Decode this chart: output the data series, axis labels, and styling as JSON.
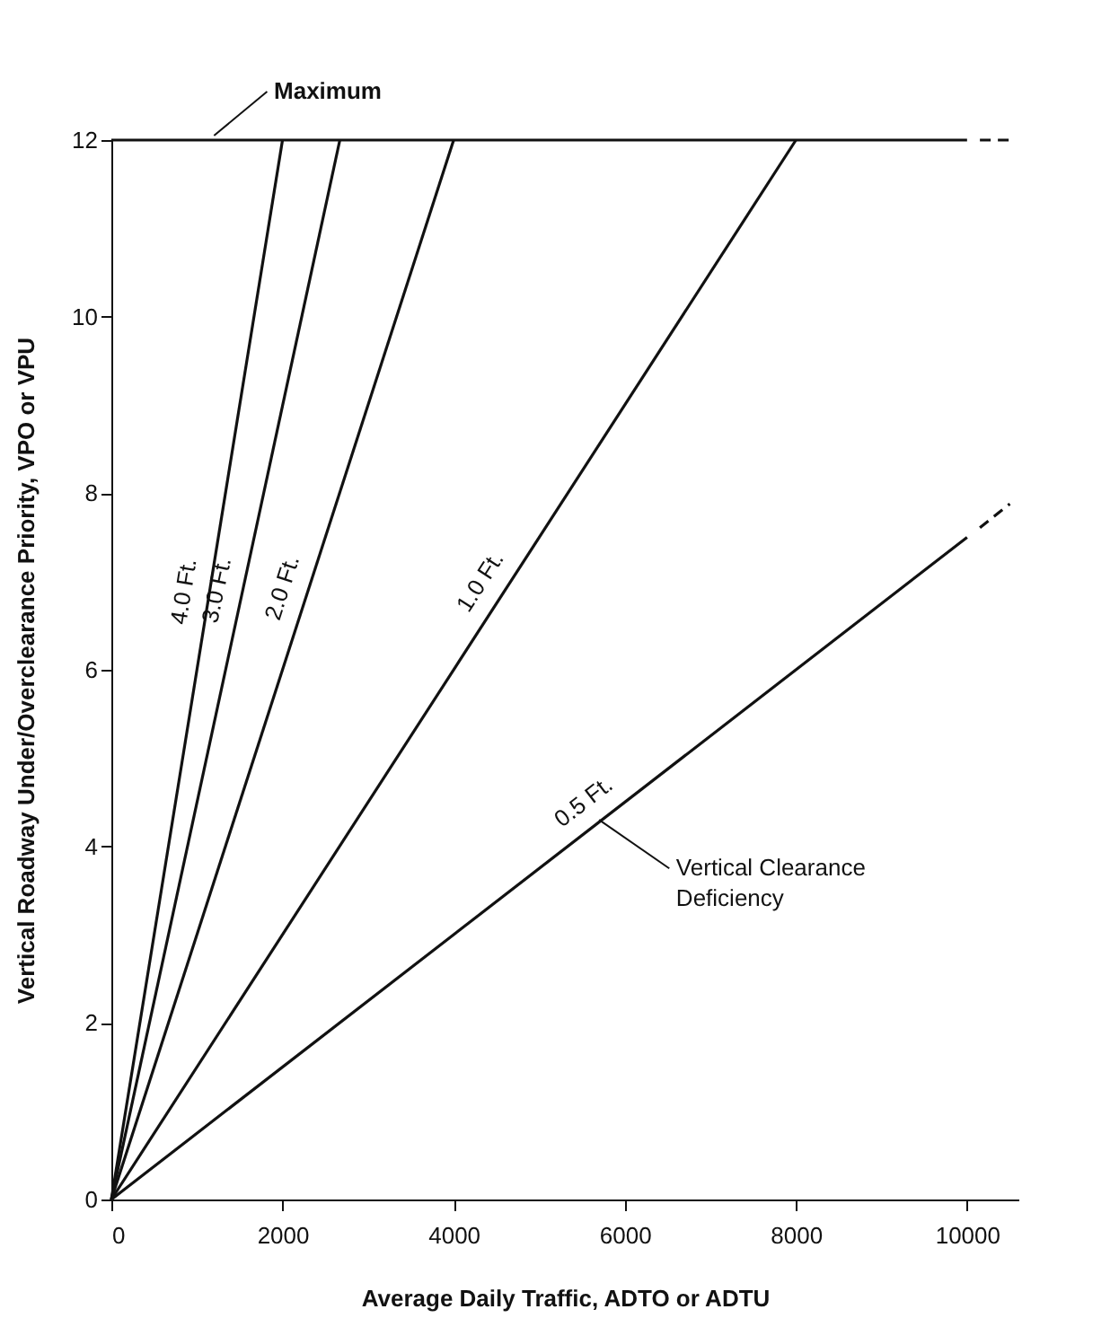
{
  "chart_data": {
    "type": "line",
    "xlabel": "Average Daily Traffic, ADTO or ADTU",
    "ylabel": "Vertical Roadway Under/Overclearance Priority, VPO or VPU",
    "xlim": [
      0,
      10600
    ],
    "ylim": [
      0,
      12
    ],
    "xticks": [
      0,
      2000,
      4000,
      6000,
      8000,
      10000
    ],
    "yticks": [
      0,
      2,
      4,
      6,
      8,
      10,
      12
    ],
    "grid": false,
    "marker": "none",
    "line_style": "solid",
    "series": [
      {
        "name": "4.0 Ft.",
        "color": "#111111",
        "x": [
          0,
          2000
        ],
        "values": [
          0,
          12
        ]
      },
      {
        "name": "3.0 Ft.",
        "color": "#111111",
        "x": [
          0,
          2670
        ],
        "values": [
          0,
          12
        ]
      },
      {
        "name": "2.0 Ft.",
        "color": "#111111",
        "x": [
          0,
          4000
        ],
        "values": [
          0,
          12
        ]
      },
      {
        "name": "1.0 Ft.",
        "color": "#111111",
        "x": [
          0,
          8000
        ],
        "values": [
          0,
          12
        ]
      },
      {
        "name": "0.5 Ft.",
        "color": "#111111",
        "x": [
          0,
          10000
        ],
        "values": [
          0,
          7.5
        ]
      },
      {
        "color": "#111111",
        "x": [
          0,
          10000
        ],
        "values": [
          12,
          12
        ]
      },
      {
        "color": "#111111",
        "x": [
          10150,
          10500
        ],
        "values": [
          12,
          12
        ],
        "line_style": "dashed"
      },
      {
        "color": "#111111",
        "x": [
          10150,
          10500
        ],
        "values": [
          7.61,
          7.88
        ],
        "line_style": "dashed"
      }
    ],
    "annotations": [
      {
        "text": "Maximum",
        "x": 1200,
        "y": 12
      },
      {
        "text": "Vertical Clearance\nDeficiency",
        "x": 5700,
        "y": 4.25
      }
    ]
  }
}
